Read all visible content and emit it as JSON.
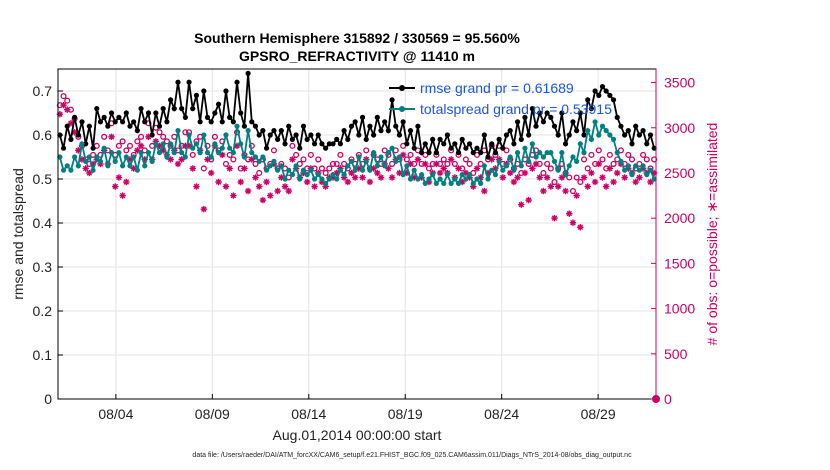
{
  "chart_data": {
    "type": "line",
    "title": "Southern Hemisphere 315892 / 330569 = 95.560%",
    "subtitle": "GPSRO_REFRACTIVITY @ 11410 m",
    "xlabel": "Aug.01,2014 00:00:00 start",
    "ylabel": "rmse and totalspread",
    "y2label": "# of obs: o=possible; ∗=assimilated",
    "footer": "data file: /Users/raeder/DAI/ATM_forcXX/CAM6_setup/f.e21.FHIST_BGC.f09_025.CAM6assim.011/Diags_NTrS_2014-08/obs_diag_output.nc",
    "xlim": [
      1.0,
      32.0
    ],
    "ylim": [
      0,
      0.75
    ],
    "y2lim": [
      0,
      3650
    ],
    "x_ticks": [
      {
        "day": 4,
        "label": "08/04"
      },
      {
        "day": 9,
        "label": "08/09"
      },
      {
        "day": 14,
        "label": "08/14"
      },
      {
        "day": 19,
        "label": "08/19"
      },
      {
        "day": 24,
        "label": "08/24"
      },
      {
        "day": 29,
        "label": "08/29"
      }
    ],
    "y_ticks": [
      "0",
      "0.1",
      "0.2",
      "0.3",
      "0.4",
      "0.5",
      "0.6",
      "0.7"
    ],
    "y2_ticks": [
      "0",
      "500",
      "1000",
      "1500",
      "2000",
      "2500",
      "3000",
      "3500"
    ],
    "grid": true,
    "legend_position": "top-right",
    "colors": {
      "rmse": "#000000",
      "spread": "#008080",
      "obs": "#cc0066",
      "grid": "#e3e3e3"
    },
    "series": [
      {
        "name": "rmse grand pr = 0.61689",
        "axis": "left",
        "values": [
          0.6,
          0.57,
          0.62,
          0.59,
          0.64,
          0.6,
          0.63,
          0.58,
          0.62,
          0.57,
          0.66,
          0.63,
          0.64,
          0.62,
          0.65,
          0.63,
          0.64,
          0.63,
          0.65,
          0.62,
          0.63,
          0.61,
          0.66,
          0.63,
          0.65,
          0.6,
          0.65,
          0.62,
          0.66,
          0.63,
          0.68,
          0.66,
          0.72,
          0.66,
          0.64,
          0.72,
          0.66,
          0.69,
          0.63,
          0.7,
          0.64,
          0.63,
          0.65,
          0.67,
          0.63,
          0.7,
          0.64,
          0.63,
          0.72,
          0.65,
          0.62,
          0.74,
          0.63,
          0.62,
          0.6,
          0.61,
          0.57,
          0.6,
          0.61,
          0.59,
          0.61,
          0.58,
          0.62,
          0.59,
          0.6,
          0.57,
          0.62,
          0.59,
          0.6,
          0.58,
          0.6,
          0.58,
          0.57,
          0.58,
          0.58,
          0.59,
          0.58,
          0.61,
          0.59,
          0.62,
          0.63,
          0.6,
          0.64,
          0.59,
          0.62,
          0.6,
          0.64,
          0.61,
          0.63,
          0.61,
          0.68,
          0.62,
          0.6,
          0.63,
          0.58,
          0.61,
          0.57,
          0.62,
          0.56,
          0.58,
          0.56,
          0.59,
          0.56,
          0.59,
          0.58,
          0.6,
          0.57,
          0.58,
          0.56,
          0.59,
          0.57,
          0.58,
          0.56,
          0.57,
          0.56,
          0.6,
          0.55,
          0.58,
          0.56,
          0.59,
          0.57,
          0.6,
          0.61,
          0.58,
          0.63,
          0.59,
          0.64,
          0.6,
          0.66,
          0.62,
          0.65,
          0.63,
          0.65,
          0.64,
          0.62,
          0.6,
          0.65,
          0.58,
          0.6,
          0.63,
          0.61,
          0.65,
          0.6,
          0.68,
          0.66,
          0.7,
          0.69,
          0.71,
          0.7,
          0.69,
          0.68,
          0.64,
          0.62,
          0.6,
          0.61,
          0.58,
          0.62,
          0.6,
          0.61,
          0.58,
          0.6,
          0.57
        ]
      },
      {
        "name": "totalspread grand pr = 0.53915",
        "axis": "left",
        "values": [
          0.55,
          0.52,
          0.53,
          0.52,
          0.55,
          0.53,
          0.58,
          0.54,
          0.55,
          0.52,
          0.55,
          0.54,
          0.57,
          0.53,
          0.56,
          0.54,
          0.56,
          0.53,
          0.55,
          0.53,
          0.55,
          0.52,
          0.56,
          0.53,
          0.56,
          0.54,
          0.58,
          0.56,
          0.58,
          0.55,
          0.58,
          0.56,
          0.61,
          0.56,
          0.55,
          0.6,
          0.57,
          0.58,
          0.56,
          0.6,
          0.56,
          0.55,
          0.58,
          0.56,
          0.57,
          0.6,
          0.57,
          0.56,
          0.62,
          0.58,
          0.55,
          0.61,
          0.56,
          0.55,
          0.54,
          0.55,
          0.52,
          0.53,
          0.54,
          0.52,
          0.53,
          0.5,
          0.52,
          0.51,
          0.53,
          0.5,
          0.52,
          0.51,
          0.52,
          0.5,
          0.51,
          0.5,
          0.49,
          0.5,
          0.51,
          0.5,
          0.52,
          0.51,
          0.53,
          0.54,
          0.52,
          0.55,
          0.52,
          0.54,
          0.52,
          0.56,
          0.53,
          0.55,
          0.53,
          0.56,
          0.57,
          0.54,
          0.55,
          0.51,
          0.53,
          0.5,
          0.52,
          0.5,
          0.51,
          0.49,
          0.5,
          0.51,
          0.49,
          0.5,
          0.49,
          0.51,
          0.49,
          0.5,
          0.49,
          0.51,
          0.5,
          0.51,
          0.49,
          0.5,
          0.49,
          0.53,
          0.5,
          0.52,
          0.51,
          0.54,
          0.52,
          0.53,
          0.55,
          0.52,
          0.56,
          0.53,
          0.57,
          0.54,
          0.58,
          0.55,
          0.56,
          0.55,
          0.56,
          0.56,
          0.54,
          0.52,
          0.56,
          0.51,
          0.53,
          0.55,
          0.54,
          0.58,
          0.56,
          0.61,
          0.59,
          0.63,
          0.6,
          0.62,
          0.61,
          0.6,
          0.59,
          0.56,
          0.54,
          0.52,
          0.53,
          0.51,
          0.53,
          0.52,
          0.53,
          0.51,
          0.52,
          0.5
        ]
      },
      {
        "name": "possible",
        "axis": "right",
        "marker": "circle",
        "values": [
          3250,
          3350,
          3300,
          3200,
          3100,
          2900,
          2800,
          2650,
          2600,
          2700,
          2800,
          2700,
          2900,
          2750,
          3050,
          2700,
          2800,
          2850,
          2750,
          2800,
          2700,
          2850,
          2900,
          2750,
          3050,
          2800,
          3000,
          2950,
          2900,
          2850,
          2800,
          2900,
          2750,
          2800,
          2950,
          2950,
          2700,
          2850,
          2900,
          2550,
          2800,
          2650,
          2900,
          2750,
          2850,
          2600,
          2700,
          2650,
          2950,
          2550,
          2700,
          2650,
          2800,
          2600,
          2500,
          2650,
          2550,
          2600,
          2750,
          2550,
          2600,
          2550,
          2450,
          2800,
          2700,
          2600,
          2650,
          2550,
          2700,
          2550,
          2650,
          2550,
          2500,
          2550,
          2600,
          2600,
          2700,
          2600,
          2550,
          2650,
          2600,
          2700,
          2600,
          2750,
          2550,
          2700,
          2650,
          2600,
          2750,
          2700,
          2600,
          2750,
          2650,
          2800,
          2650,
          2700,
          2600,
          2750,
          2600,
          2700,
          2550,
          2600,
          2700,
          2600,
          2650,
          2600,
          2750,
          2600,
          2700,
          2550,
          2650,
          2600,
          2500,
          2700,
          2600,
          2750,
          2650,
          2800,
          2700,
          2800,
          2600,
          2750,
          2650,
          2550,
          2600,
          2500,
          2650,
          2600,
          2700,
          2750,
          2600,
          2500,
          2600,
          2550,
          2400,
          2550,
          2600,
          2500,
          2450,
          2300,
          2450,
          2400,
          2650,
          2550,
          2700,
          2600,
          2750,
          2650,
          2550,
          2700,
          2600,
          2650,
          2750,
          2600,
          2700,
          2650,
          2550,
          2600,
          2700,
          2650,
          2550,
          2650
        ]
      },
      {
        "name": "assimilated",
        "axis": "right",
        "marker": "asterisk",
        "values": [
          3150,
          3250,
          3200,
          3050,
          2950,
          2750,
          2650,
          2550,
          2500,
          2600,
          2650,
          2600,
          2750,
          2600,
          2900,
          2350,
          2450,
          2250,
          2400,
          2650,
          2550,
          2750,
          2800,
          2650,
          2900,
          2650,
          2850,
          2800,
          2750,
          2700,
          2650,
          2750,
          2600,
          2650,
          2800,
          2800,
          2550,
          2350,
          2750,
          2100,
          2650,
          2500,
          2800,
          2400,
          2700,
          2350,
          2550,
          2250,
          2800,
          2400,
          2550,
          2300,
          2650,
          2450,
          2350,
          2200,
          2400,
          2250,
          2600,
          2300,
          2450,
          2350,
          2300,
          2650,
          2550,
          2450,
          2500,
          2400,
          2550,
          2350,
          2500,
          2400,
          2350,
          2450,
          2450,
          2500,
          2550,
          2450,
          2400,
          2500,
          2450,
          2550,
          2450,
          2650,
          2400,
          2550,
          2500,
          2450,
          2600,
          2550,
          2450,
          2650,
          2500,
          2700,
          2500,
          2600,
          2450,
          2650,
          2450,
          2600,
          2400,
          2500,
          2600,
          2500,
          2550,
          2500,
          2650,
          2450,
          2550,
          2400,
          2500,
          2450,
          2350,
          2550,
          2450,
          2300,
          2500,
          2650,
          2550,
          2650,
          2450,
          2600,
          2500,
          2400,
          2450,
          2150,
          2500,
          2200,
          2550,
          2600,
          2450,
          2300,
          2450,
          2350,
          2000,
          2350,
          2450,
          2300,
          2050,
          1950,
          2250,
          1900,
          2450,
          2350,
          2500,
          2400,
          2600,
          2450,
          2350,
          2550,
          2400,
          2500,
          2600,
          2450,
          2550,
          2500,
          2400,
          2450,
          2550,
          2500,
          2400,
          2500
        ]
      }
    ]
  }
}
